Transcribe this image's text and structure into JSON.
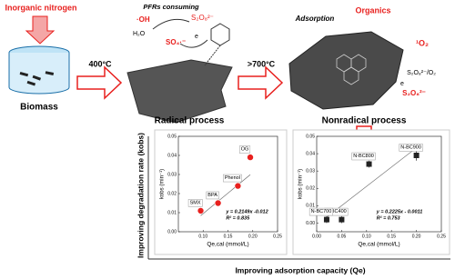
{
  "diagram": {
    "source": "Inorganic nitrogen",
    "biomass": "Biomass",
    "step1": "400°C",
    "radical": "Radical process",
    "step2": ">700°C",
    "nonradical": "Nonradical process",
    "pfrs": "PFRs consuming",
    "oh": "·OH",
    "h2o": "H₂O",
    "s2o8_a": "S₂O₈²⁻",
    "so4": "SO₄·⁻",
    "e_a": "e",
    "adsorption": "Adsorption",
    "organics": "Organics",
    "singlet": "¹O₂",
    "s2o8_o2": "S₂O₈²⁻/O₂",
    "s2o8_b": "S₂O₈²⁻",
    "e_b": "e",
    "y_axis": "Improving degradation rate (kobs)",
    "x_axis": "Improving adsorption capacity (Qe)"
  },
  "chart_data": [
    {
      "type": "scatter",
      "x_label": "Qe,cal (mmol/L)",
      "y_label": "kobs (min⁻¹)",
      "xlim": [
        0.05,
        0.25
      ],
      "ylim": [
        0,
        0.05
      ],
      "xticks": [
        {
          "value": 0.1,
          "label": "0.10"
        },
        0.15,
        {
          "value": 0.2,
          "label": "0.20"
        },
        0.25
      ],
      "yticks": [
        {
          "value": 0,
          "label": "0.00"
        },
        0.01,
        0.02,
        0.03,
        0.04,
        0.05
      ],
      "x": [
        0.095,
        0.13,
        0.17,
        0.195
      ],
      "values": [
        0.011,
        0.015,
        0.024,
        0.039
      ],
      "point_labels": [
        "SMX",
        "BPA",
        "Phenol",
        "OG"
      ],
      "color": "#e8201e",
      "marker": "circle",
      "equation": "y = 0.2149x -0.012",
      "r2": "R² = 0.835",
      "trend": {
        "slope": 0.2149,
        "intercept": -0.012
      }
    },
    {
      "type": "scatter",
      "x_label": "Qe,cal (mmol/L)",
      "y_label": "kobs (min⁻¹)",
      "xlim": [
        0,
        0.25
      ],
      "ylim": [
        -0.005,
        0.05
      ],
      "xticks": [
        {
          "value": 0,
          "label": "0.00"
        },
        0.05,
        {
          "value": 0.1,
          "label": "0.10"
        },
        0.15,
        {
          "value": 0.2,
          "label": "0.20"
        },
        0.25
      ],
      "yticks": [
        {
          "value": 0,
          "label": "0.00"
        },
        0.01,
        0.02,
        0.03,
        0.04,
        0.05
      ],
      "x": [
        0.05,
        0.02,
        0.105,
        0.2
      ],
      "values": [
        0.002,
        0.002,
        0.034,
        0.039
      ],
      "errors": [
        0.002,
        0.002,
        0.002,
        0.003
      ],
      "point_labels": [
        "N-BC400",
        "N-BC700",
        "N-BC800",
        "N-BC900"
      ],
      "color": "#222222",
      "marker": "square",
      "equation": "y = 0.2225x - 0.0011",
      "r2": "R² = 0.753",
      "trend": {
        "slope": 0.2225,
        "intercept": -0.0011
      }
    }
  ]
}
